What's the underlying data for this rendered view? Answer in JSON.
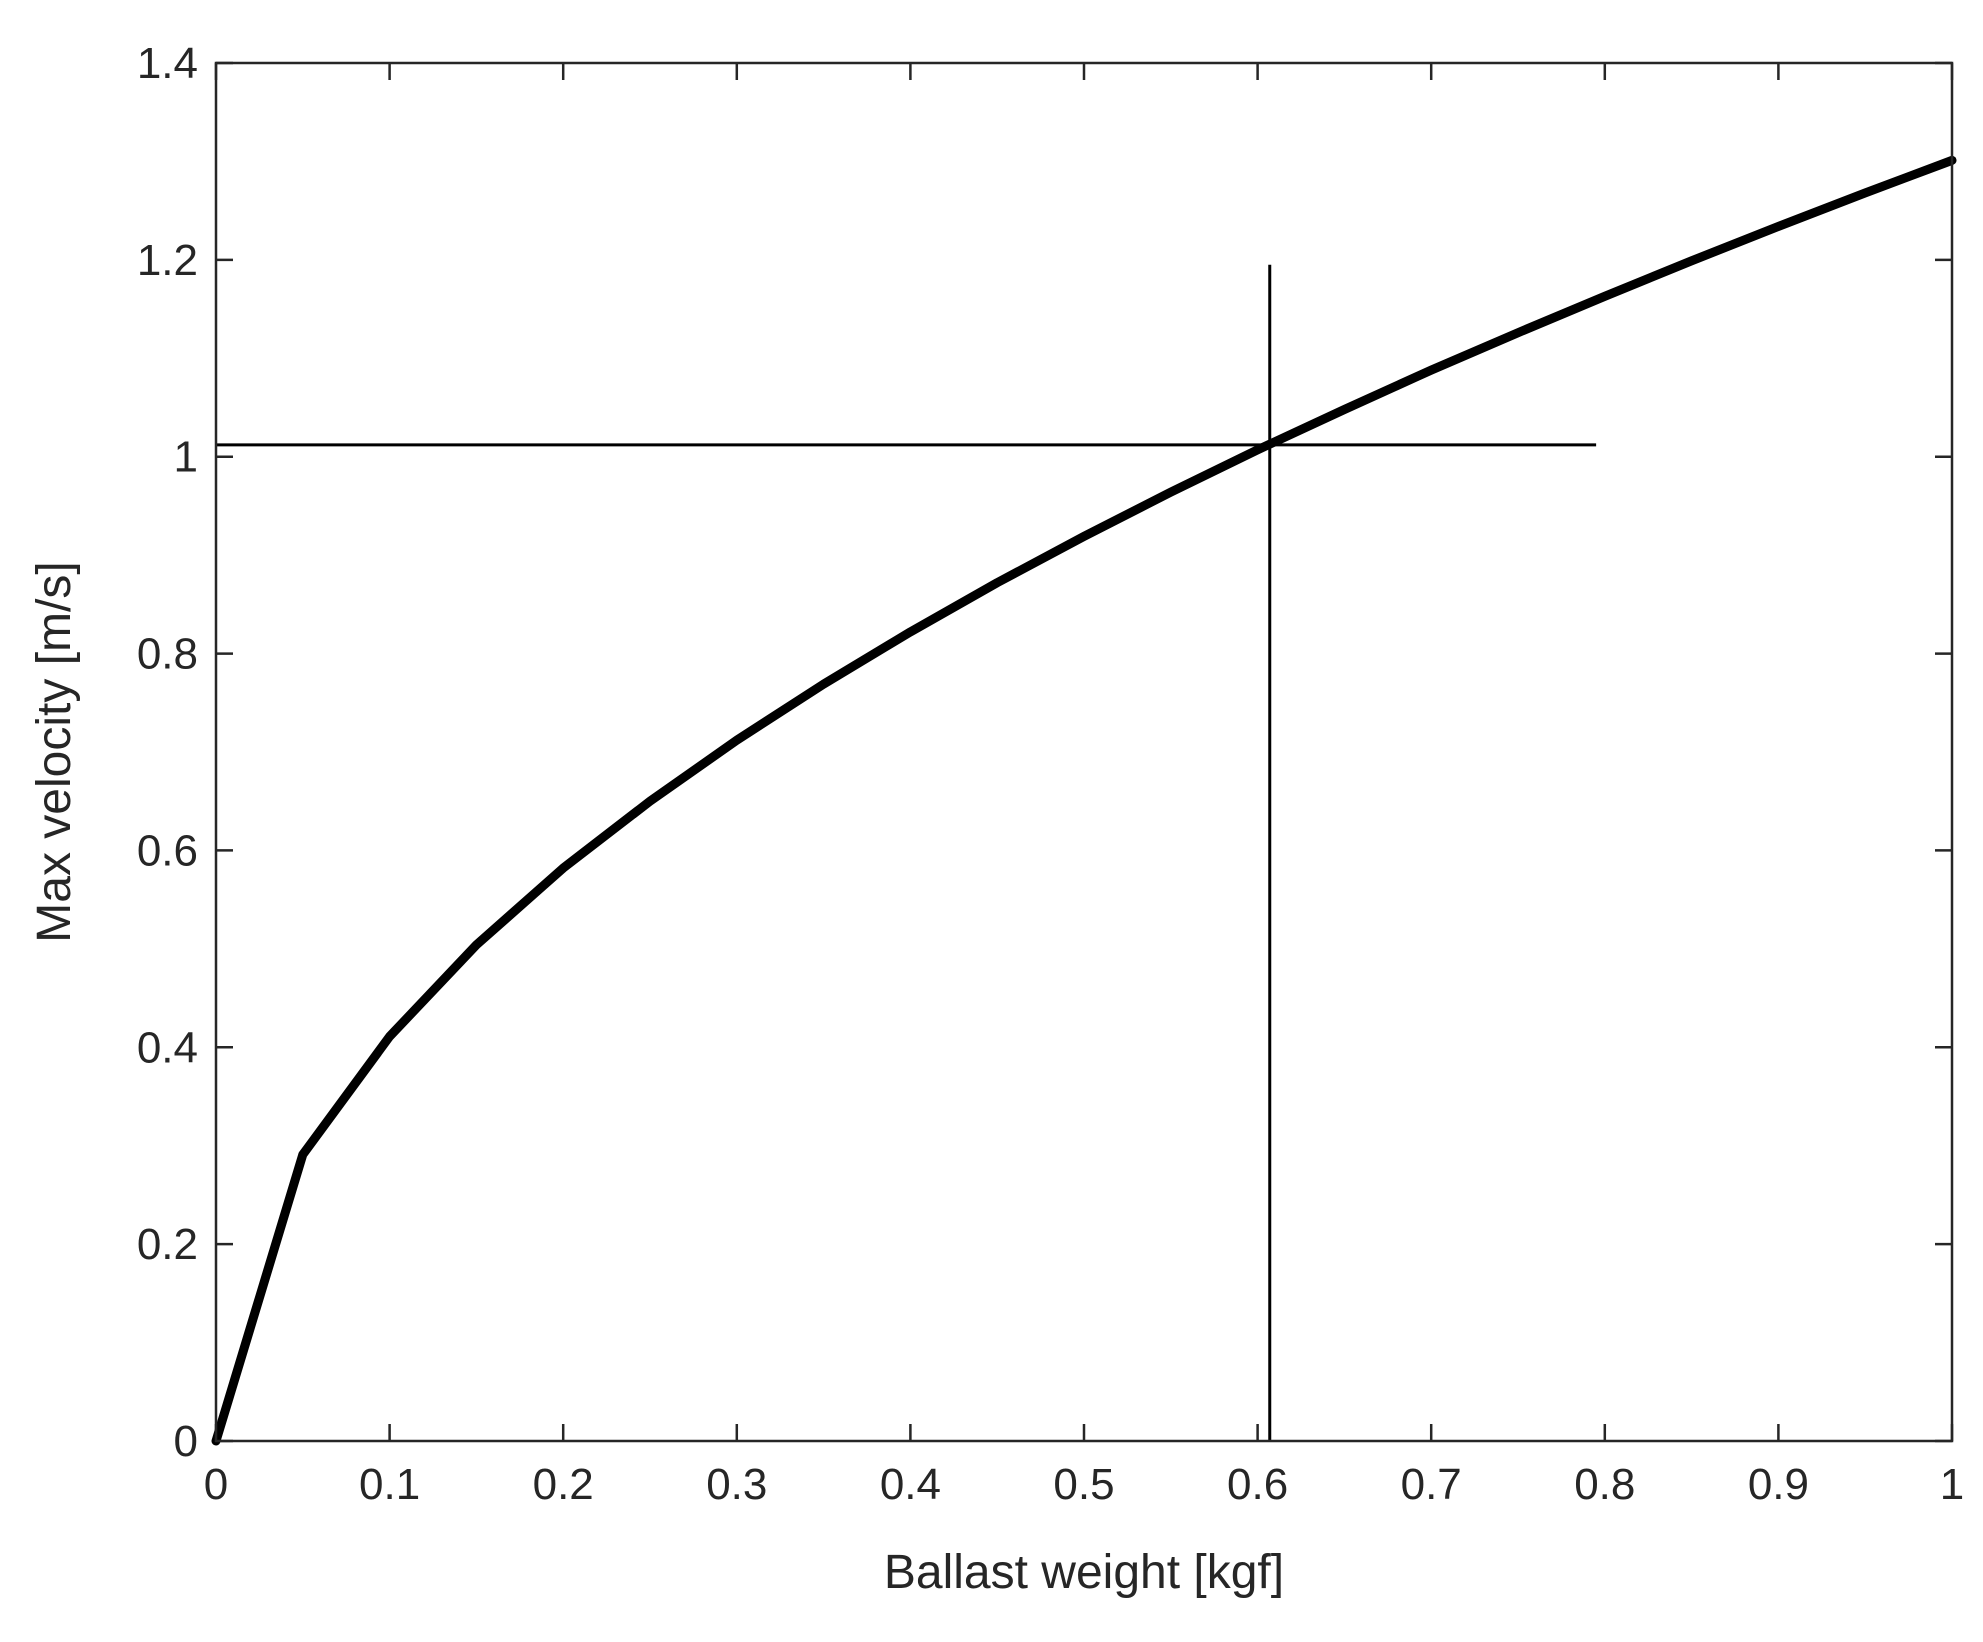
{
  "chart_data": {
    "type": "line",
    "title": "",
    "xlabel": "Ballast weight [kgf]",
    "ylabel": "Max velocity [m/s]",
    "xlim": [
      0,
      1
    ],
    "ylim": [
      0,
      1.4
    ],
    "xticks": [
      0,
      0.1,
      0.2,
      0.3,
      0.4,
      0.5,
      0.6,
      0.7,
      0.8,
      0.9,
      1
    ],
    "xtick_labels": [
      "0",
      "0.1",
      "0.2",
      "0.3",
      "0.4",
      "0.5",
      "0.6",
      "0.7",
      "0.8",
      "0.9",
      "1"
    ],
    "yticks": [
      0,
      0.2,
      0.4,
      0.6,
      0.8,
      1,
      1.2,
      1.4
    ],
    "ytick_labels": [
      "0",
      "0.2",
      "0.4",
      "0.6",
      "0.8",
      "1",
      "1.2",
      "1.4"
    ],
    "grid": false,
    "legend": null,
    "series": [
      {
        "x": [
          0,
          0.05,
          0.1,
          0.15,
          0.2,
          0.25,
          0.3,
          0.35,
          0.4,
          0.45,
          0.5,
          0.55,
          0.6,
          0.65,
          0.7,
          0.75,
          0.8,
          0.85,
          0.9,
          0.95,
          1
        ],
        "y": [
          0,
          0.291,
          0.411,
          0.504,
          0.582,
          0.65,
          0.712,
          0.769,
          0.822,
          0.872,
          0.919,
          0.964,
          1.007,
          1.048,
          1.088,
          1.126,
          1.163,
          1.199,
          1.234,
          1.268,
          1.301
        ],
        "color": "#000000",
        "line_style": "solid",
        "line_weight": "thick"
      }
    ],
    "reference_lines": [
      {
        "orientation": "horizontal",
        "y": 1.012,
        "x_range": [
          0,
          0.795
        ],
        "color": "#000000"
      },
      {
        "orientation": "vertical",
        "x": 0.607,
        "y_range": [
          0,
          1.195
        ],
        "color": "#000000"
      }
    ]
  }
}
